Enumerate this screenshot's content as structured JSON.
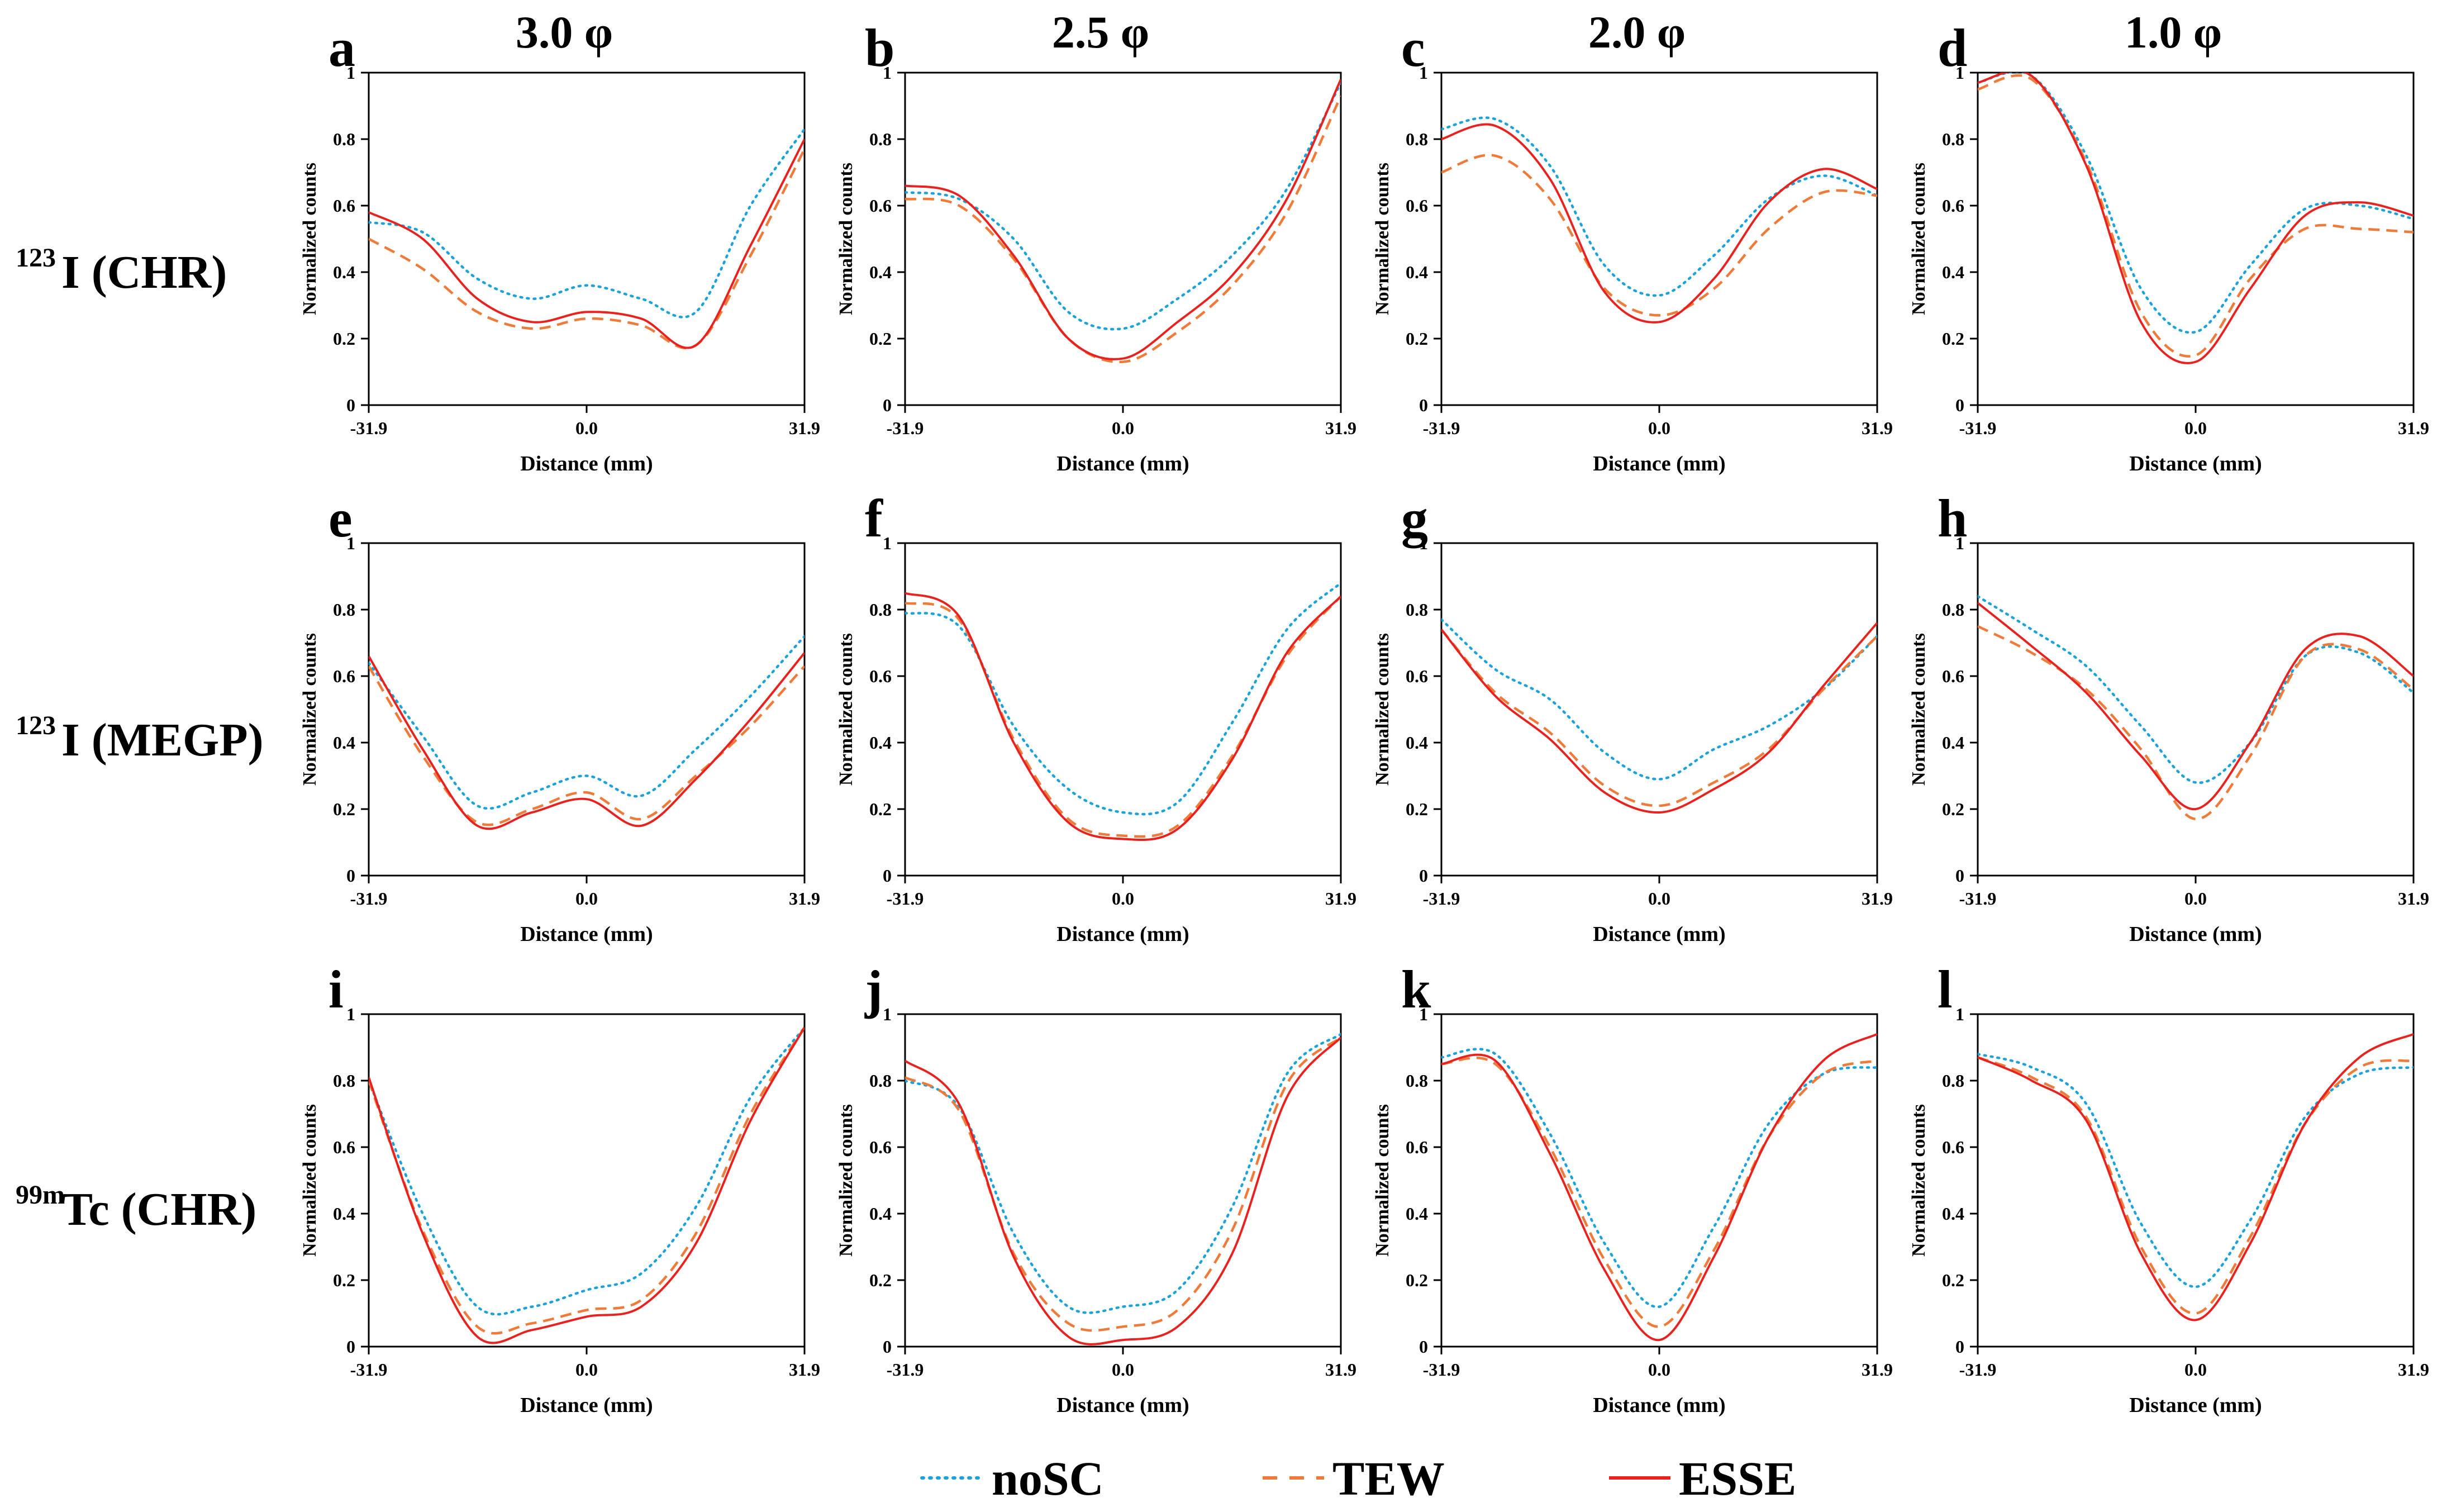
{
  "figure": {
    "column_headers": [
      "3.0 φ",
      "2.5 φ",
      "2.0 φ",
      "1.0 φ"
    ],
    "row_headers": [
      {
        "sup": "123",
        "main": "I (CHR)"
      },
      {
        "sup": "123",
        "main": "I (MEGP)"
      },
      {
        "sup": "99m",
        "main": "Tc (CHR)"
      }
    ],
    "legend": [
      {
        "name": "noSC",
        "color": "#1ca3d9",
        "style": "dotted"
      },
      {
        "name": "TEW",
        "color": "#ee7b3a",
        "style": "dashed"
      },
      {
        "name": "ESSE",
        "color": "#e8231f",
        "style": "solid"
      }
    ]
  },
  "chart_data": [
    {
      "type": "line",
      "panel": "a",
      "xlabel": "Distance (mm)",
      "ylabel": "Normalized counts",
      "xlim": [
        -31.9,
        31.9
      ],
      "ylim": [
        0,
        1
      ],
      "xticks": [
        "-31.9",
        "0.0",
        "31.9"
      ],
      "yticks": [
        "0",
        "0.2",
        "0.4",
        "0.6",
        "0.8",
        "1"
      ],
      "x": [
        -31.9,
        -24,
        -16,
        -8,
        0,
        8,
        16,
        24,
        31.9
      ],
      "series": [
        {
          "name": "noSC",
          "values": [
            0.55,
            0.52,
            0.38,
            0.32,
            0.36,
            0.32,
            0.28,
            0.6,
            0.83
          ]
        },
        {
          "name": "TEW",
          "values": [
            0.5,
            0.41,
            0.28,
            0.23,
            0.26,
            0.24,
            0.18,
            0.45,
            0.77
          ]
        },
        {
          "name": "ESSE",
          "values": [
            0.58,
            0.5,
            0.32,
            0.25,
            0.28,
            0.26,
            0.18,
            0.48,
            0.8
          ]
        }
      ]
    },
    {
      "type": "line",
      "panel": "b",
      "xlabel": "Distance (mm)",
      "ylabel": "Normalized counts",
      "xlim": [
        -31.9,
        31.9
      ],
      "ylim": [
        0,
        1
      ],
      "xticks": [
        "-31.9",
        "0.0",
        "31.9"
      ],
      "yticks": [
        "0",
        "0.2",
        "0.4",
        "0.6",
        "0.8",
        "1"
      ],
      "x": [
        -31.9,
        -24,
        -16,
        -8,
        0,
        8,
        16,
        24,
        31.9
      ],
      "series": [
        {
          "name": "noSC",
          "values": [
            0.64,
            0.62,
            0.5,
            0.28,
            0.23,
            0.32,
            0.45,
            0.65,
            0.97
          ]
        },
        {
          "name": "TEW",
          "values": [
            0.62,
            0.6,
            0.44,
            0.2,
            0.13,
            0.22,
            0.36,
            0.58,
            0.93
          ]
        },
        {
          "name": "ESSE",
          "values": [
            0.66,
            0.63,
            0.45,
            0.2,
            0.14,
            0.25,
            0.39,
            0.62,
            0.98
          ]
        }
      ]
    },
    {
      "type": "line",
      "panel": "c",
      "xlabel": "Distance (mm)",
      "ylabel": "Normalized counts",
      "xlim": [
        -31.9,
        31.9
      ],
      "ylim": [
        0,
        1
      ],
      "xticks": [
        "-31.9",
        "0.0",
        "31.9"
      ],
      "yticks": [
        "0",
        "0.2",
        "0.4",
        "0.6",
        "0.8",
        "1"
      ],
      "x": [
        -31.9,
        -24,
        -16,
        -8,
        0,
        8,
        16,
        24,
        31.9
      ],
      "series": [
        {
          "name": "noSC",
          "values": [
            0.83,
            0.86,
            0.72,
            0.42,
            0.33,
            0.45,
            0.62,
            0.69,
            0.63
          ]
        },
        {
          "name": "TEW",
          "values": [
            0.7,
            0.75,
            0.62,
            0.35,
            0.27,
            0.35,
            0.53,
            0.64,
            0.63
          ]
        },
        {
          "name": "ESSE",
          "values": [
            0.8,
            0.84,
            0.68,
            0.34,
            0.25,
            0.38,
            0.61,
            0.71,
            0.65
          ]
        }
      ]
    },
    {
      "type": "line",
      "panel": "d",
      "xlabel": "Distance (mm)",
      "ylabel": "Normalized counts",
      "xlim": [
        -31.9,
        31.9
      ],
      "ylim": [
        0,
        1
      ],
      "xticks": [
        "-31.9",
        "0.0",
        "31.9"
      ],
      "yticks": [
        "0",
        "0.2",
        "0.4",
        "0.6",
        "0.8",
        "1"
      ],
      "x": [
        -31.9,
        -24,
        -16,
        -8,
        0,
        8,
        16,
        24,
        31.9
      ],
      "series": [
        {
          "name": "noSC",
          "values": [
            0.97,
            0.99,
            0.75,
            0.35,
            0.22,
            0.42,
            0.59,
            0.6,
            0.56
          ]
        },
        {
          "name": "TEW",
          "values": [
            0.95,
            0.98,
            0.73,
            0.28,
            0.15,
            0.38,
            0.53,
            0.53,
            0.52
          ]
        },
        {
          "name": "ESSE",
          "values": [
            0.97,
            0.99,
            0.72,
            0.25,
            0.13,
            0.35,
            0.57,
            0.61,
            0.57
          ]
        }
      ]
    },
    {
      "type": "line",
      "panel": "e",
      "xlabel": "Distance (mm)",
      "ylabel": "Normalized counts",
      "xlim": [
        -31.9,
        31.9
      ],
      "ylim": [
        0,
        1
      ],
      "xticks": [
        "-31.9",
        "0.0",
        "31.9"
      ],
      "yticks": [
        "0",
        "0.2",
        "0.4",
        "0.6",
        "0.8",
        "1"
      ],
      "x": [
        -31.9,
        -24,
        -16,
        -8,
        0,
        8,
        16,
        24,
        31.9
      ],
      "series": [
        {
          "name": "noSC",
          "values": [
            0.64,
            0.42,
            0.21,
            0.25,
            0.3,
            0.24,
            0.38,
            0.54,
            0.72
          ]
        },
        {
          "name": "TEW",
          "values": [
            0.63,
            0.36,
            0.16,
            0.2,
            0.25,
            0.17,
            0.3,
            0.45,
            0.63
          ]
        },
        {
          "name": "ESSE",
          "values": [
            0.66,
            0.38,
            0.15,
            0.19,
            0.23,
            0.15,
            0.29,
            0.47,
            0.67
          ]
        }
      ]
    },
    {
      "type": "line",
      "panel": "f",
      "xlabel": "Distance (mm)",
      "ylabel": "Normalized counts",
      "xlim": [
        -31.9,
        31.9
      ],
      "ylim": [
        0,
        1
      ],
      "xticks": [
        "-31.9",
        "0.0",
        "31.9"
      ],
      "yticks": [
        "0",
        "0.2",
        "0.4",
        "0.6",
        "0.8",
        "1"
      ],
      "x": [
        -31.9,
        -24,
        -16,
        -8,
        0,
        8,
        16,
        24,
        31.9
      ],
      "series": [
        {
          "name": "noSC",
          "values": [
            0.79,
            0.75,
            0.45,
            0.26,
            0.19,
            0.22,
            0.46,
            0.74,
            0.88
          ]
        },
        {
          "name": "TEW",
          "values": [
            0.82,
            0.77,
            0.41,
            0.17,
            0.12,
            0.15,
            0.36,
            0.66,
            0.84
          ]
        },
        {
          "name": "ESSE",
          "values": [
            0.85,
            0.78,
            0.4,
            0.16,
            0.11,
            0.14,
            0.35,
            0.67,
            0.84
          ]
        }
      ]
    },
    {
      "type": "line",
      "panel": "g",
      "xlabel": "Distance (mm)",
      "ylabel": "Normalized counts",
      "xlim": [
        -31.9,
        31.9
      ],
      "ylim": [
        0,
        1
      ],
      "xticks": [
        "-31.9",
        "0.0",
        "31.9"
      ],
      "yticks": [
        "0",
        "0.2",
        "0.4",
        "0.6",
        "0.8",
        "1"
      ],
      "x": [
        -31.9,
        -24,
        -16,
        -8,
        0,
        8,
        16,
        24,
        31.9
      ],
      "series": [
        {
          "name": "noSC",
          "values": [
            0.77,
            0.62,
            0.53,
            0.37,
            0.29,
            0.38,
            0.45,
            0.56,
            0.72
          ]
        },
        {
          "name": "TEW",
          "values": [
            0.74,
            0.55,
            0.43,
            0.27,
            0.21,
            0.28,
            0.38,
            0.56,
            0.72
          ]
        },
        {
          "name": "ESSE",
          "values": [
            0.74,
            0.54,
            0.41,
            0.25,
            0.19,
            0.26,
            0.37,
            0.57,
            0.76
          ]
        }
      ]
    },
    {
      "type": "line",
      "panel": "h",
      "xlabel": "Distance (mm)",
      "ylabel": "Normalized counts",
      "xlim": [
        -31.9,
        31.9
      ],
      "ylim": [
        0,
        1
      ],
      "xticks": [
        "-31.9",
        "0.0",
        "31.9"
      ],
      "yticks": [
        "0",
        "0.2",
        "0.4",
        "0.6",
        "0.8",
        "1"
      ],
      "x": [
        -31.9,
        -24,
        -16,
        -8,
        0,
        8,
        16,
        24,
        31.9
      ],
      "series": [
        {
          "name": "noSC",
          "values": [
            0.84,
            0.74,
            0.63,
            0.45,
            0.28,
            0.4,
            0.66,
            0.67,
            0.55
          ]
        },
        {
          "name": "TEW",
          "values": [
            0.75,
            0.67,
            0.56,
            0.38,
            0.17,
            0.36,
            0.66,
            0.68,
            0.56
          ]
        },
        {
          "name": "ESSE",
          "values": [
            0.82,
            0.69,
            0.55,
            0.36,
            0.2,
            0.4,
            0.68,
            0.72,
            0.6
          ]
        }
      ]
    },
    {
      "type": "line",
      "panel": "i",
      "xlabel": "Distance (mm)",
      "ylabel": "Normalized counts",
      "xlim": [
        -31.9,
        31.9
      ],
      "ylim": [
        0,
        1
      ],
      "xticks": [
        "-31.9",
        "0.0",
        "31.9"
      ],
      "yticks": [
        "0",
        "0.2",
        "0.4",
        "0.6",
        "0.8",
        "1"
      ],
      "x": [
        -31.9,
        -24,
        -16,
        -8,
        0,
        8,
        16,
        24,
        31.9
      ],
      "series": [
        {
          "name": "noSC",
          "values": [
            0.8,
            0.4,
            0.12,
            0.12,
            0.17,
            0.22,
            0.42,
            0.75,
            0.96
          ]
        },
        {
          "name": "TEW",
          "values": [
            0.8,
            0.35,
            0.06,
            0.07,
            0.11,
            0.14,
            0.34,
            0.7,
            0.96
          ]
        },
        {
          "name": "ESSE",
          "values": [
            0.81,
            0.34,
            0.03,
            0.05,
            0.09,
            0.12,
            0.31,
            0.68,
            0.96
          ]
        }
      ]
    },
    {
      "type": "line",
      "panel": "j",
      "xlabel": "Distance (mm)",
      "ylabel": "Normalized counts",
      "xlim": [
        -31.9,
        31.9
      ],
      "ylim": [
        0,
        1
      ],
      "xticks": [
        "-31.9",
        "0.0",
        "31.9"
      ],
      "yticks": [
        "0",
        "0.2",
        "0.4",
        "0.6",
        "0.8",
        "1"
      ],
      "x": [
        -31.9,
        -24,
        -16,
        -8,
        0,
        8,
        16,
        24,
        31.9
      ],
      "series": [
        {
          "name": "noSC",
          "values": [
            0.8,
            0.72,
            0.34,
            0.12,
            0.12,
            0.17,
            0.42,
            0.82,
            0.94
          ]
        },
        {
          "name": "TEW",
          "values": [
            0.81,
            0.71,
            0.28,
            0.07,
            0.06,
            0.11,
            0.35,
            0.79,
            0.93
          ]
        },
        {
          "name": "ESSE",
          "values": [
            0.86,
            0.73,
            0.27,
            0.03,
            0.02,
            0.06,
            0.28,
            0.75,
            0.93
          ]
        }
      ]
    },
    {
      "type": "line",
      "panel": "k",
      "xlabel": "Distance (mm)",
      "ylabel": "Normalized counts",
      "xlim": [
        -31.9,
        31.9
      ],
      "ylim": [
        0,
        1
      ],
      "xticks": [
        "-31.9",
        "0.0",
        "31.9"
      ],
      "yticks": [
        "0",
        "0.2",
        "0.4",
        "0.6",
        "0.8",
        "1"
      ],
      "x": [
        -31.9,
        -24,
        -16,
        -8,
        0,
        8,
        16,
        24,
        31.9
      ],
      "series": [
        {
          "name": "noSC",
          "values": [
            0.87,
            0.88,
            0.64,
            0.31,
            0.12,
            0.36,
            0.67,
            0.82,
            0.84
          ]
        },
        {
          "name": "TEW",
          "values": [
            0.85,
            0.85,
            0.6,
            0.26,
            0.06,
            0.29,
            0.63,
            0.82,
            0.86
          ]
        },
        {
          "name": "ESSE",
          "values": [
            0.85,
            0.86,
            0.58,
            0.23,
            0.02,
            0.27,
            0.63,
            0.86,
            0.94
          ]
        }
      ]
    },
    {
      "type": "line",
      "panel": "l",
      "xlabel": "Distance (mm)",
      "ylabel": "Normalized counts",
      "xlim": [
        -31.9,
        31.9
      ],
      "ylim": [
        0,
        1
      ],
      "xticks": [
        "-31.9",
        "0.0",
        "31.9"
      ],
      "yticks": [
        "0",
        "0.2",
        "0.4",
        "0.6",
        "0.8",
        "1"
      ],
      "x": [
        -31.9,
        -24,
        -16,
        -8,
        0,
        8,
        16,
        24,
        31.9
      ],
      "series": [
        {
          "name": "noSC",
          "values": [
            0.88,
            0.84,
            0.73,
            0.37,
            0.18,
            0.38,
            0.69,
            0.82,
            0.84
          ]
        },
        {
          "name": "TEW",
          "values": [
            0.87,
            0.81,
            0.69,
            0.3,
            0.1,
            0.33,
            0.67,
            0.84,
            0.86
          ]
        },
        {
          "name": "ESSE",
          "values": [
            0.87,
            0.8,
            0.68,
            0.28,
            0.08,
            0.31,
            0.67,
            0.87,
            0.94
          ]
        }
      ]
    }
  ]
}
